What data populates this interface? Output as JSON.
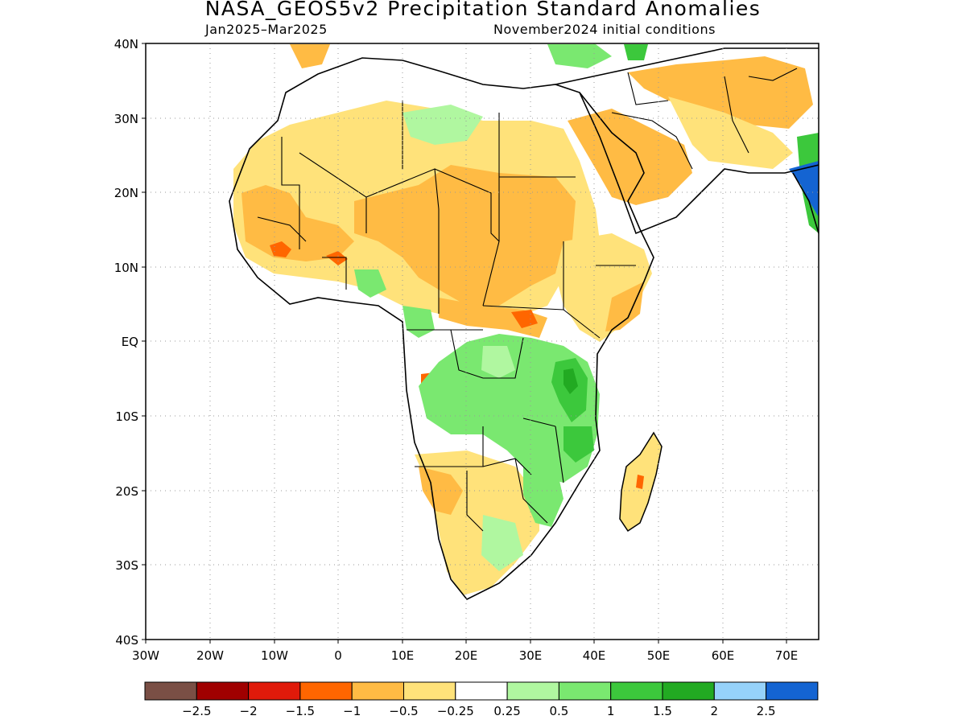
{
  "map": {
    "title": "NASA_GEOS5v2 Precipitation Standard Anomalies",
    "subtitle_left": "Jan2025–Mar2025",
    "subtitle_right": "November2024 initial conditions",
    "lat_labels": [
      "40N",
      "30N",
      "20N",
      "10N",
      "EQ",
      "10S",
      "20S",
      "30S",
      "40S"
    ],
    "lon_labels": [
      "30W",
      "20W",
      "10W",
      "0",
      "10E",
      "20E",
      "30E",
      "40E",
      "50E",
      "60E",
      "70E"
    ],
    "lat_range": [
      -40,
      40
    ],
    "lon_range": [
      -30,
      75
    ],
    "gridlines": "dotted"
  },
  "colorbar": {
    "colors": [
      "#7a4f45",
      "#a00000",
      "#e01a0a",
      "#ff6600",
      "#ffbb44",
      "#ffe27a",
      "#ffffff",
      "#b0f7a0",
      "#7ae870",
      "#3cc83c",
      "#22aa22",
      "#96d2fa",
      "#1464d2"
    ],
    "labels": [
      "−2.5",
      "−2",
      "−1.5",
      "−1",
      "−0.5",
      "−0.25",
      "0.25",
      "0.5",
      "1",
      "1.5",
      "2",
      "2.5"
    ]
  }
}
